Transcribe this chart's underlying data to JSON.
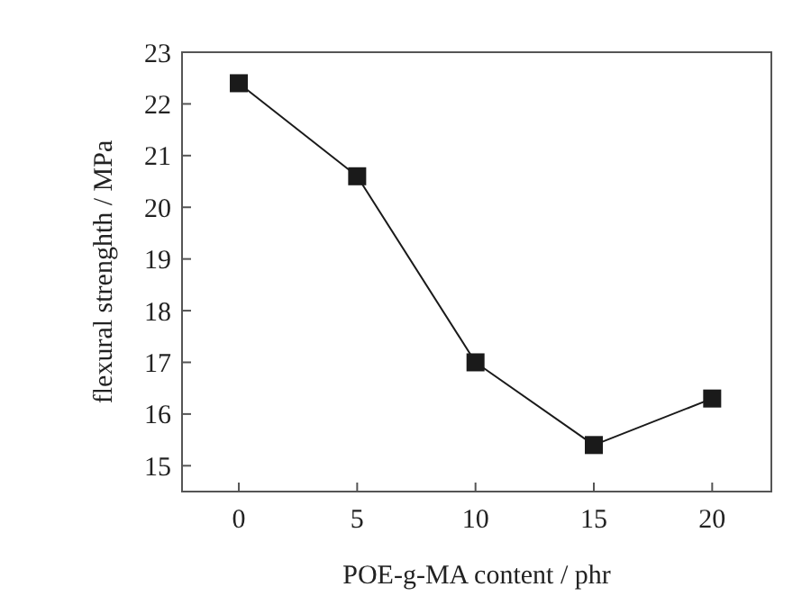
{
  "chart_data": {
    "type": "line",
    "xlabel": "POE-g-MA content / phr",
    "ylabel": "flexural strenghth / MPa",
    "x": [
      0,
      5,
      10,
      15,
      20
    ],
    "series": [
      {
        "color": "#1a1a1a",
        "values": [
          22.4,
          20.6,
          17.0,
          15.4,
          16.3
        ]
      }
    ],
    "marker": "square",
    "line_style": "solid",
    "grid": false,
    "xlim": [
      -2.4,
      22.5
    ],
    "xticks": [
      0,
      5,
      10,
      15,
      20
    ],
    "ylim": [
      14.5,
      23
    ],
    "yticks": [
      15,
      16,
      17,
      18,
      19,
      20,
      21,
      22,
      23
    ]
  }
}
